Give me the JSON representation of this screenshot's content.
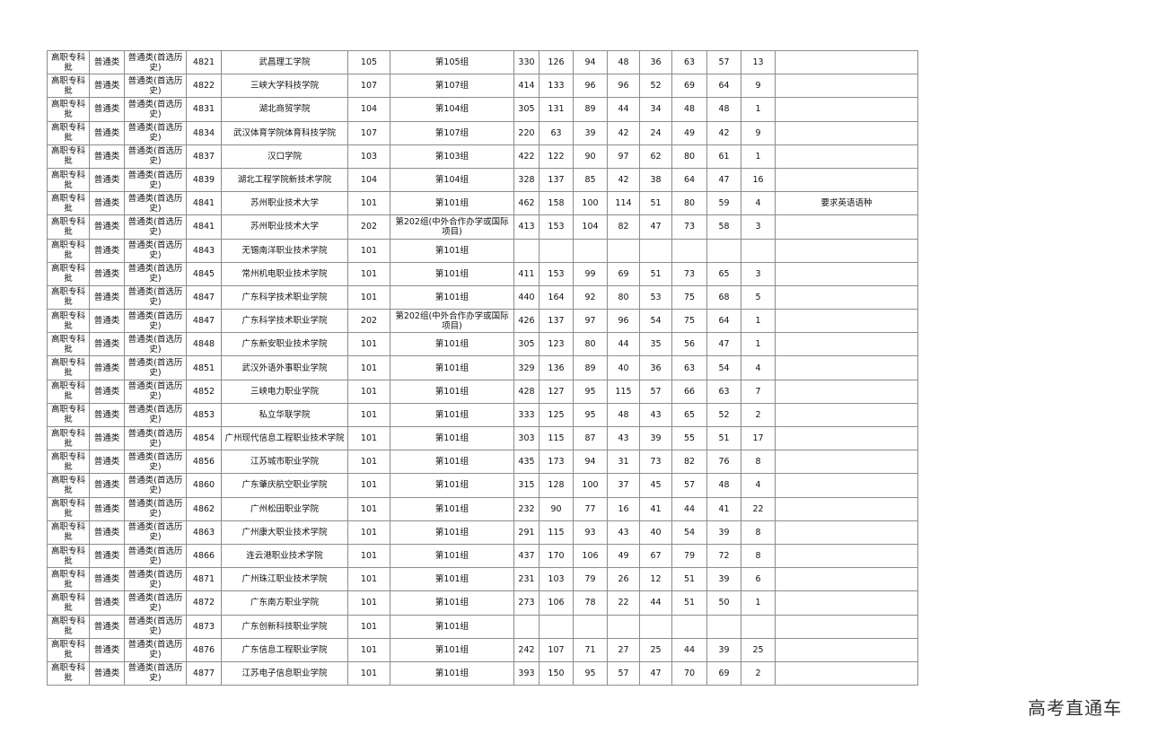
{
  "table": {
    "rows": [
      [
        "高职专科批",
        "普通类",
        "普通类(首选历史)",
        "4821",
        "武昌理工学院",
        "105",
        "第105组",
        "330",
        "126",
        "94",
        "48",
        "36",
        "63",
        "57",
        "13",
        ""
      ],
      [
        "高职专科批",
        "普通类",
        "普通类(首选历史)",
        "4822",
        "三峡大学科技学院",
        "107",
        "第107组",
        "414",
        "133",
        "96",
        "96",
        "52",
        "69",
        "64",
        "9",
        ""
      ],
      [
        "高职专科批",
        "普通类",
        "普通类(首选历史)",
        "4831",
        "湖北商贸学院",
        "104",
        "第104组",
        "305",
        "131",
        "89",
        "44",
        "34",
        "48",
        "48",
        "1",
        ""
      ],
      [
        "高职专科批",
        "普通类",
        "普通类(首选历史)",
        "4834",
        "武汉体育学院体育科技学院",
        "107",
        "第107组",
        "220",
        "63",
        "39",
        "42",
        "24",
        "49",
        "42",
        "9",
        ""
      ],
      [
        "高职专科批",
        "普通类",
        "普通类(首选历史)",
        "4837",
        "汉口学院",
        "103",
        "第103组",
        "422",
        "122",
        "90",
        "97",
        "62",
        "80",
        "61",
        "1",
        ""
      ],
      [
        "高职专科批",
        "普通类",
        "普通类(首选历史)",
        "4839",
        "湖北工程学院新技术学院",
        "104",
        "第104组",
        "328",
        "137",
        "85",
        "42",
        "38",
        "64",
        "47",
        "16",
        ""
      ],
      [
        "高职专科批",
        "普通类",
        "普通类(首选历史)",
        "4841",
        "苏州职业技术大学",
        "101",
        "第101组",
        "462",
        "158",
        "100",
        "114",
        "51",
        "80",
        "59",
        "4",
        "要求英语语种"
      ],
      [
        "高职专科批",
        "普通类",
        "普通类(首选历史)",
        "4841",
        "苏州职业技术大学",
        "202",
        "第202组(中外合作办学或国际项目)",
        "413",
        "153",
        "104",
        "82",
        "47",
        "73",
        "58",
        "3",
        ""
      ],
      [
        "高职专科批",
        "普通类",
        "普通类(首选历史)",
        "4843",
        "无锡南洋职业技术学院",
        "101",
        "第101组",
        "",
        "",
        "",
        "",
        "",
        "",
        "",
        "",
        ""
      ],
      [
        "高职专科批",
        "普通类",
        "普通类(首选历史)",
        "4845",
        "常州机电职业技术学院",
        "101",
        "第101组",
        "411",
        "153",
        "99",
        "69",
        "51",
        "73",
        "65",
        "3",
        ""
      ],
      [
        "高职专科批",
        "普通类",
        "普通类(首选历史)",
        "4847",
        "广东科学技术职业学院",
        "101",
        "第101组",
        "440",
        "164",
        "92",
        "80",
        "53",
        "75",
        "68",
        "5",
        ""
      ],
      [
        "高职专科批",
        "普通类",
        "普通类(首选历史)",
        "4847",
        "广东科学技术职业学院",
        "202",
        "第202组(中外合作办学或国际项目)",
        "426",
        "137",
        "97",
        "96",
        "54",
        "75",
        "64",
        "1",
        ""
      ],
      [
        "高职专科批",
        "普通类",
        "普通类(首选历史)",
        "4848",
        "广东新安职业技术学院",
        "101",
        "第101组",
        "305",
        "123",
        "80",
        "44",
        "35",
        "56",
        "47",
        "1",
        ""
      ],
      [
        "高职专科批",
        "普通类",
        "普通类(首选历史)",
        "4851",
        "武汉外语外事职业学院",
        "101",
        "第101组",
        "329",
        "136",
        "89",
        "40",
        "36",
        "63",
        "54",
        "4",
        ""
      ],
      [
        "高职专科批",
        "普通类",
        "普通类(首选历史)",
        "4852",
        "三峡电力职业学院",
        "101",
        "第101组",
        "428",
        "127",
        "95",
        "115",
        "57",
        "66",
        "63",
        "7",
        ""
      ],
      [
        "高职专科批",
        "普通类",
        "普通类(首选历史)",
        "4853",
        "私立华联学院",
        "101",
        "第101组",
        "333",
        "125",
        "95",
        "48",
        "43",
        "65",
        "52",
        "2",
        ""
      ],
      [
        "高职专科批",
        "普通类",
        "普通类(首选历史)",
        "4854",
        "广州现代信息工程职业技术学院",
        "101",
        "第101组",
        "303",
        "115",
        "87",
        "43",
        "39",
        "55",
        "51",
        "17",
        ""
      ],
      [
        "高职专科批",
        "普通类",
        "普通类(首选历史)",
        "4856",
        "江苏城市职业学院",
        "101",
        "第101组",
        "435",
        "173",
        "94",
        "31",
        "73",
        "82",
        "76",
        "8",
        ""
      ],
      [
        "高职专科批",
        "普通类",
        "普通类(首选历史)",
        "4860",
        "广东肇庆航空职业学院",
        "101",
        "第101组",
        "315",
        "128",
        "100",
        "37",
        "45",
        "57",
        "48",
        "4",
        ""
      ],
      [
        "高职专科批",
        "普通类",
        "普通类(首选历史)",
        "4862",
        "广州松田职业学院",
        "101",
        "第101组",
        "232",
        "90",
        "77",
        "16",
        "41",
        "44",
        "41",
        "22",
        ""
      ],
      [
        "高职专科批",
        "普通类",
        "普通类(首选历史)",
        "4863",
        "广州康大职业技术学院",
        "101",
        "第101组",
        "291",
        "115",
        "93",
        "43",
        "40",
        "54",
        "39",
        "8",
        ""
      ],
      [
        "高职专科批",
        "普通类",
        "普通类(首选历史)",
        "4866",
        "连云港职业技术学院",
        "101",
        "第101组",
        "437",
        "170",
        "106",
        "49",
        "67",
        "79",
        "72",
        "8",
        ""
      ],
      [
        "高职专科批",
        "普通类",
        "普通类(首选历史)",
        "4871",
        "广州珠江职业技术学院",
        "101",
        "第101组",
        "231",
        "103",
        "79",
        "26",
        "12",
        "51",
        "39",
        "6",
        ""
      ],
      [
        "高职专科批",
        "普通类",
        "普通类(首选历史)",
        "4872",
        "广东南方职业学院",
        "101",
        "第101组",
        "273",
        "106",
        "78",
        "22",
        "44",
        "51",
        "50",
        "1",
        ""
      ],
      [
        "高职专科批",
        "普通类",
        "普通类(首选历史)",
        "4873",
        "广东创新科技职业学院",
        "101",
        "第101组",
        "",
        "",
        "",
        "",
        "",
        "",
        "",
        "",
        ""
      ],
      [
        "高职专科批",
        "普通类",
        "普通类(首选历史)",
        "4876",
        "广东信息工程职业学院",
        "101",
        "第101组",
        "242",
        "107",
        "71",
        "27",
        "25",
        "44",
        "39",
        "25",
        ""
      ],
      [
        "高职专科批",
        "普通类",
        "普通类(首选历史)",
        "4877",
        "江苏电子信息职业学院",
        "101",
        "第101组",
        "393",
        "150",
        "95",
        "57",
        "47",
        "70",
        "69",
        "2",
        ""
      ]
    ]
  },
  "watermark": "高考直通车"
}
